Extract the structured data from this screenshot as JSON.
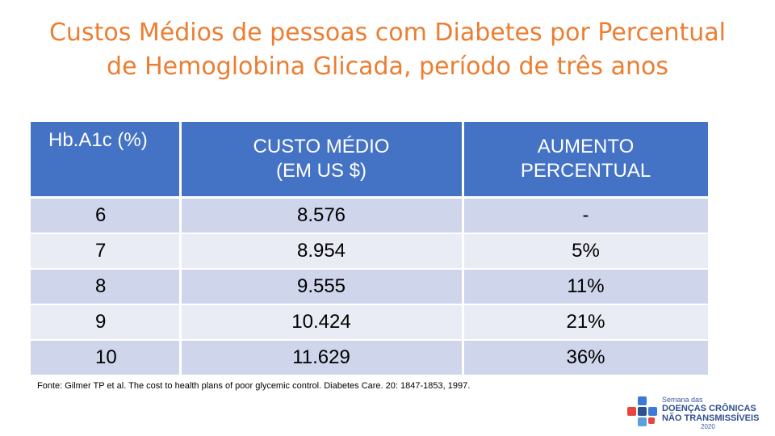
{
  "title": {
    "line1": "Custos Médios de pessoas com Diabetes por Percentual",
    "line2": "de Hemoglobina Glicada, período de três anos"
  },
  "table": {
    "headers": {
      "col1": "Hb.A1c (%)",
      "col2_line1": "CUSTO MÉDIO",
      "col2_line2": "(EM US $)",
      "col3_line1": "AUMENTO",
      "col3_line2": "PERCENTUAL"
    },
    "rows": [
      {
        "hba1c": "6",
        "cost": "8.576",
        "increase": "-"
      },
      {
        "hba1c": "7",
        "cost": "8.954",
        "increase": "5%"
      },
      {
        "hba1c": "8",
        "cost": "9.555",
        "increase": "11%"
      },
      {
        "hba1c": "9",
        "cost": "10.424",
        "increase": "21%"
      },
      {
        "hba1c": "10",
        "cost": "11.629",
        "increase": "36%"
      }
    ]
  },
  "source": "Fonte: Gilmer TP et al. The cost to health plans of poor glycemic control. Diabetes Care. 20: 1847-1853, 1997.",
  "logo": {
    "line1": "Semana das",
    "line2": "DOENÇAS CRÔNICAS",
    "line3": "NÃO TRANSMISSÍVEIS",
    "year": "2020"
  },
  "colors": {
    "title": "#ED7D31",
    "header_bg": "#4472C4",
    "row_odd": "#CFD5EA",
    "row_even": "#E9EBF5"
  }
}
